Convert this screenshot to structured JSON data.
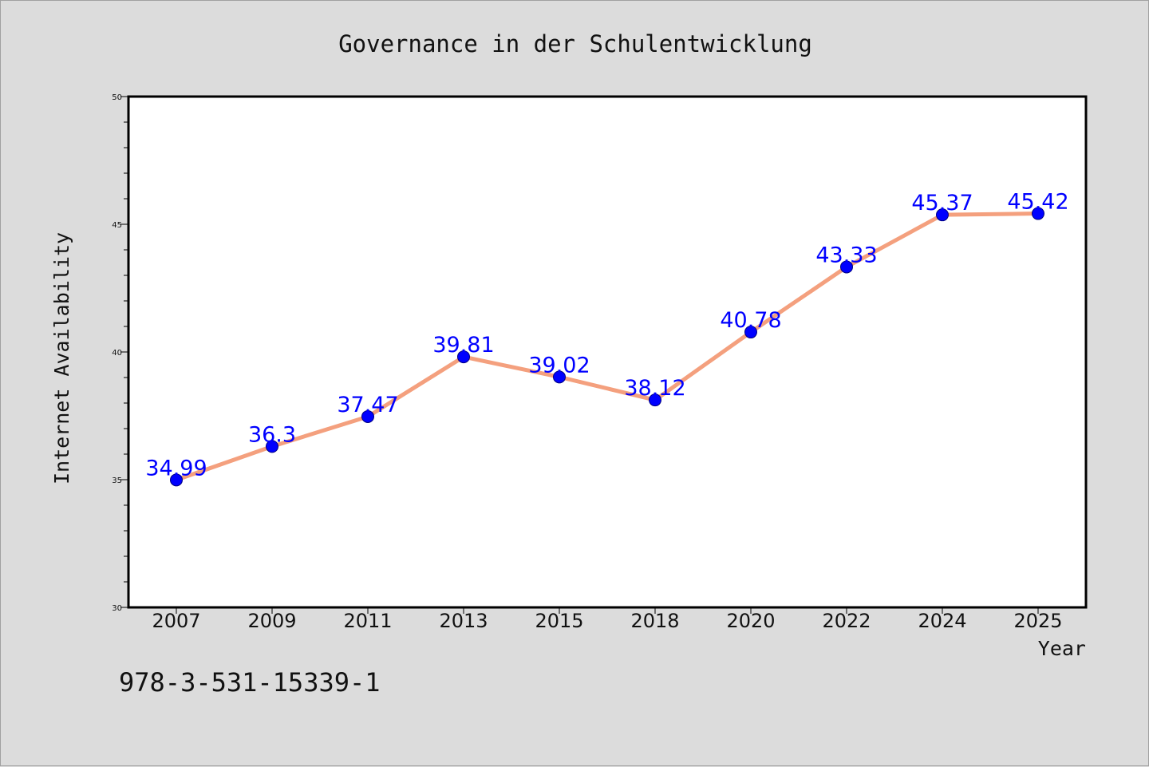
{
  "chart_data": {
    "type": "line",
    "title": "Governance in der Schulentwicklung",
    "xlabel": "Year",
    "ylabel": "Internet Availability",
    "categories": [
      "2007",
      "2009",
      "2011",
      "2013",
      "2015",
      "2018",
      "2020",
      "2022",
      "2024",
      "2025"
    ],
    "series": [
      {
        "values": [
          34.99,
          36.3,
          37.47,
          39.81,
          39.02,
          38.12,
          40.78,
          43.33,
          45.37,
          45.42
        ],
        "data_labels": [
          "34.99",
          "36.3",
          "37.47",
          "39.81",
          "39.02",
          "38.12",
          "40.78",
          "43.33",
          "45.37",
          "45.42"
        ]
      }
    ],
    "ylim": [
      30,
      50
    ],
    "yticks": [
      "30",
      "35",
      "40",
      "45",
      "50"
    ],
    "grid": false,
    "legend": "none",
    "colors": {
      "line": "#f4a07e",
      "marker": "#0000ff",
      "label": "#0000ff",
      "plot_background": "#ffffff",
      "figure_background": "#dcdcdc"
    }
  },
  "footer_code": "978-3-531-15339-1"
}
